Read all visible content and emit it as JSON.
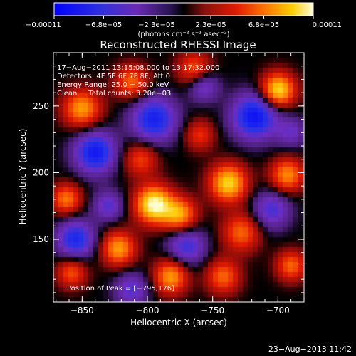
{
  "chart_data": {
    "type": "heatmap",
    "title": "Reconstructed RHESSI Image",
    "xlabel": "Heliocentric X (arcsec)",
    "ylabel": "Heliocentric Y (arcsec)",
    "xlim": [
      -872,
      -680
    ],
    "ylim": [
      103,
      290
    ],
    "xticks": [
      -850,
      -800,
      -750,
      -700
    ],
    "xtick_labels": [
      "−850",
      "−800",
      "−750",
      "−700"
    ],
    "yticks": [
      150,
      200,
      250
    ],
    "ytick_labels": [
      "150",
      "200",
      "250"
    ],
    "colorbar": {
      "min": -0.00011,
      "max": 0.00011,
      "ticks": [
        -0.00011,
        -6.8e-05,
        -2.3e-05,
        2.3e-05,
        6.8e-05,
        0.00011
      ],
      "tick_labels": [
        "−0.00011",
        "−6.8e−05",
        "−2.3e−05",
        "2.3e−05",
        "6.8e−05",
        "0.00011"
      ],
      "units_label": "(photons cm⁻² s⁻¹ asec⁻²)"
    },
    "info_lines": [
      "17−Aug−2011 13:15:08.000 to 13:17:32.000",
      "Detectors: 4F 5F 6F 7F 8F, Att 0",
      "Energy Range: 25.0 − 50.0 keV",
      "Clean     Total counts: 3.20e+03"
    ],
    "peak_label": "Position of Peak = [−795,176]",
    "peak": [
      -795,
      176
    ],
    "sources": [
      [
        -795,
        176,
        1.0,
        10
      ],
      [
        -775,
        168,
        0.7,
        9
      ],
      [
        -738,
        192,
        0.85,
        10
      ],
      [
        -728,
        155,
        0.55,
        10
      ],
      [
        -700,
        262,
        0.9,
        9
      ],
      [
        -693,
        198,
        0.65,
        9
      ],
      [
        -850,
        248,
        0.7,
        10
      ],
      [
        -862,
        180,
        0.6,
        8
      ],
      [
        -822,
        143,
        0.7,
        9
      ],
      [
        -812,
        268,
        0.55,
        9
      ],
      [
        -764,
        278,
        0.5,
        9
      ],
      [
        -782,
        122,
        0.7,
        9
      ],
      [
        -742,
        122,
        0.55,
        9
      ],
      [
        -858,
        125,
        0.5,
        8
      ],
      [
        -690,
        130,
        0.55,
        8
      ],
      [
        -760,
        228,
        0.4,
        8
      ],
      [
        -805,
        210,
        0.45,
        9
      ],
      [
        -840,
        215,
        -0.8,
        11
      ],
      [
        -795,
        240,
        -0.75,
        12
      ],
      [
        -718,
        242,
        -0.85,
        12
      ],
      [
        -855,
        150,
        -0.7,
        10
      ],
      [
        -770,
        145,
        -0.55,
        10
      ],
      [
        -830,
        175,
        -0.45,
        8
      ],
      [
        -705,
        172,
        -0.5,
        10
      ],
      [
        -812,
        112,
        -0.45,
        9
      ],
      [
        -757,
        265,
        -0.45,
        8
      ],
      [
        -690,
        230,
        -0.35,
        8
      ]
    ]
  },
  "timestamp": "23−Aug−2013 11:42"
}
